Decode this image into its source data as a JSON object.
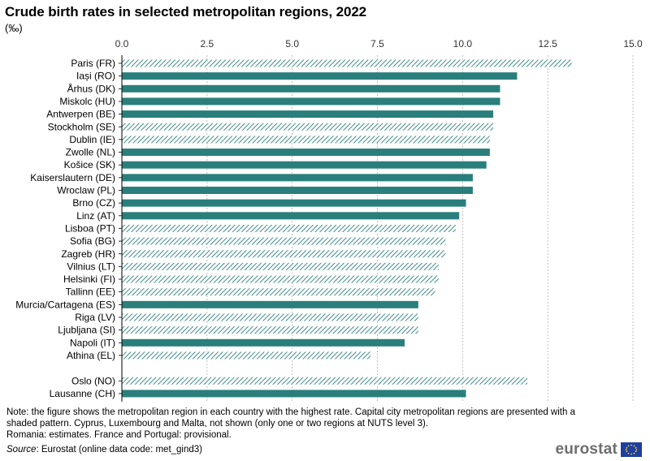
{
  "title": "Crude birth rates in selected metropolitan regions, 2022",
  "unit": "(‰)",
  "chart_data": {
    "type": "bar",
    "orientation": "horizontal",
    "xlim": [
      0,
      15
    ],
    "ticks": [
      "0.0",
      "2.5",
      "5.0",
      "7.5",
      "10.0",
      "12.5",
      "15.0"
    ],
    "tick_values": [
      0,
      2.5,
      5,
      7.5,
      10,
      12.5,
      15
    ],
    "colors": {
      "bar": "#2a7f7c",
      "hatch": "#2a7f7c",
      "grid": "#b0b0b0"
    },
    "groups": [
      {
        "items": [
          {
            "label": "Paris (FR)",
            "value": 13.2,
            "capital": true
          },
          {
            "label": "Iași (RO)",
            "value": 11.6,
            "capital": false
          },
          {
            "label": "Århus (DK)",
            "value": 11.1,
            "capital": false
          },
          {
            "label": "Miskolc (HU)",
            "value": 11.1,
            "capital": false
          },
          {
            "label": "Antwerpen (BE)",
            "value": 10.9,
            "capital": false
          },
          {
            "label": "Stockholm (SE)",
            "value": 10.9,
            "capital": true
          },
          {
            "label": "Dublin (IE)",
            "value": 10.8,
            "capital": true
          },
          {
            "label": "Zwolle (NL)",
            "value": 10.8,
            "capital": false
          },
          {
            "label": "Košice (SK)",
            "value": 10.7,
            "capital": false
          },
          {
            "label": "Kaiserslautern (DE)",
            "value": 10.3,
            "capital": false
          },
          {
            "label": "Wroclaw (PL)",
            "value": 10.3,
            "capital": false
          },
          {
            "label": "Brno (CZ)",
            "value": 10.1,
            "capital": false
          },
          {
            "label": "Linz (AT)",
            "value": 9.9,
            "capital": false
          },
          {
            "label": "Lisboa (PT)",
            "value": 9.8,
            "capital": true
          },
          {
            "label": "Sofia (BG)",
            "value": 9.5,
            "capital": true
          },
          {
            "label": "Zagreb (HR)",
            "value": 9.5,
            "capital": true
          },
          {
            "label": "Vilnius (LT)",
            "value": 9.3,
            "capital": true
          },
          {
            "label": "Helsinki (FI)",
            "value": 9.3,
            "capital": true
          },
          {
            "label": "Tallinn (EE)",
            "value": 9.2,
            "capital": true
          },
          {
            "label": "Murcia/Cartagena (ES)",
            "value": 8.7,
            "capital": false
          },
          {
            "label": "Riga (LV)",
            "value": 8.7,
            "capital": true
          },
          {
            "label": "Ljubljana (SI)",
            "value": 8.7,
            "capital": true
          },
          {
            "label": "Napoli (IT)",
            "value": 8.3,
            "capital": false
          },
          {
            "label": "Athina (EL)",
            "value": 7.3,
            "capital": true
          }
        ]
      },
      {
        "items": [
          {
            "label": "Oslo (NO)",
            "value": 11.9,
            "capital": true
          },
          {
            "label": "Lausanne (CH)",
            "value": 10.1,
            "capital": false
          }
        ]
      }
    ]
  },
  "notes": {
    "line1": "Note: the figure shows the metropolitan region in each country with the highest rate. Capital city metropolitan regions are presented with a shaded pattern. Cyprus, Luxembourg and Malta, not shown (only one or two regions at NUTS level 3).",
    "line2": "Romania: estimates. France and Portugal: provisional."
  },
  "source": {
    "label": "Source",
    "text": ": Eurostat (online data code: met_gind3)"
  },
  "logo": {
    "text": "eurostat",
    "flag_icon": "eu-flag-icon"
  }
}
